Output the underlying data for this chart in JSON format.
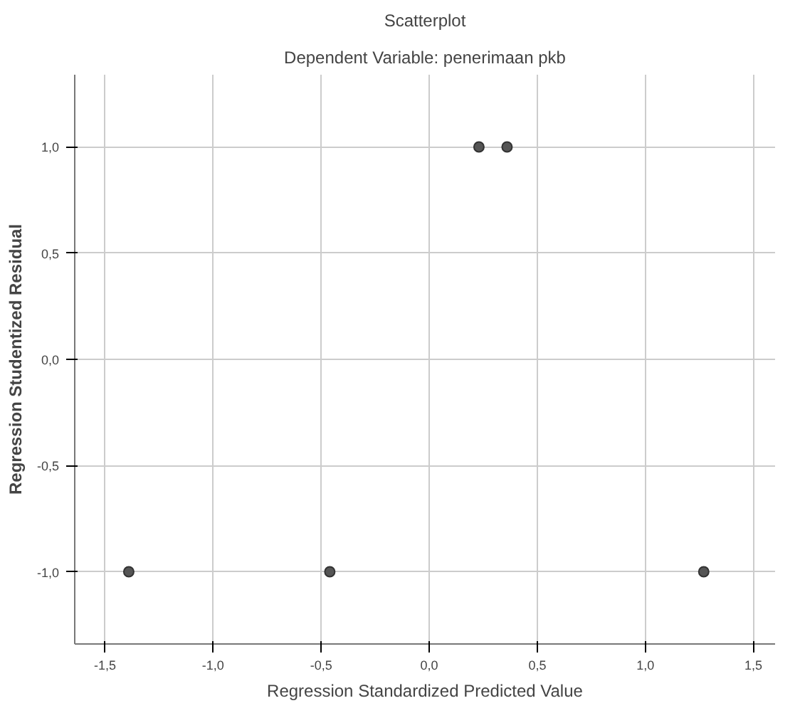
{
  "chart_data": {
    "type": "scatter",
    "title": "Scatterplot",
    "subtitle": "Dependent Variable: penerimaan pkb",
    "xlabel": "Regression Standardized Predicted Value",
    "ylabel": "Regression Studentized Residual",
    "x": [
      -1.39,
      -0.46,
      0.23,
      0.36,
      1.27
    ],
    "series": [
      {
        "color": "#555555",
        "values": [
          -1.0,
          -1.0,
          1.0,
          1.0,
          -1.0
        ]
      }
    ],
    "xlim": [
      -1.64,
      1.6
    ],
    "ylim": [
      -1.34,
      1.34
    ],
    "xticks": [
      {
        "value": -1.5,
        "label": "-1,5"
      },
      {
        "value": -1.0,
        "label": "-1,0"
      },
      {
        "value": -0.5,
        "label": "-0,5"
      },
      {
        "value": 0.0,
        "label": "0,0"
      },
      {
        "value": 0.5,
        "label": "0,5"
      },
      {
        "value": 1.0,
        "label": "1,0"
      },
      {
        "value": 1.5,
        "label": "1,5"
      }
    ],
    "yticks": [
      {
        "value": -1.0,
        "label": "-1,0"
      },
      {
        "value": -0.5,
        "label": "-0,5"
      },
      {
        "value": 0.0,
        "label": "0,0"
      },
      {
        "value": 0.5,
        "label": "0,5"
      },
      {
        "value": 1.0,
        "label": "1,0"
      }
    ],
    "grid": true,
    "marker": "circle"
  }
}
